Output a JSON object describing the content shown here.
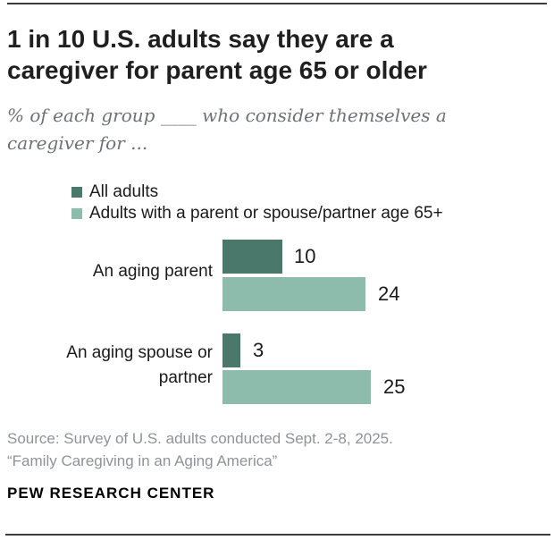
{
  "header": {
    "title_line1": "1 in 10 U.S. adults say they are a",
    "title_line2": "caregiver for parent age 65 or older",
    "subtitle_line1": "% of each group ____ who consider themselves a",
    "subtitle_line2": "caregiver for ..."
  },
  "chart_data": {
    "type": "bar",
    "orientation": "horizontal",
    "title": "1 in 10 U.S. adults say they are a caregiver for parent age 65 or older",
    "subtitle": "% of each group ____ who consider themselves a caregiver for ...",
    "categories": [
      "An aging parent",
      "An aging spouse or partner"
    ],
    "category_display_lines": [
      [
        "An aging parent"
      ],
      [
        "An aging spouse or",
        "partner"
      ]
    ],
    "series": [
      {
        "name": "All adults",
        "color": "#4A786B",
        "values": [
          10,
          3
        ]
      },
      {
        "name": "Adults with a parent or spouse/partner age 65+",
        "color": "#8DBCAC",
        "values": [
          24,
          25
        ]
      }
    ],
    "xlim": [
      0,
      30
    ],
    "grid": false,
    "legend_position": "top-left",
    "value_labels": "outside-end"
  },
  "footer": {
    "source_line1": "Source: Survey of U.S. adults conducted Sept. 2-8, 2025.",
    "source_line2": "“Family Caregiving in an Aging America”",
    "brand": "PEW RESEARCH CENTER"
  },
  "colors": {
    "dark_green": "#4A786B",
    "light_green": "#8DBCAC",
    "title_text": "#1f1f1f",
    "subtitle_text": "#6e7276",
    "source_text": "#909396",
    "rule": "#3b3b3b"
  }
}
